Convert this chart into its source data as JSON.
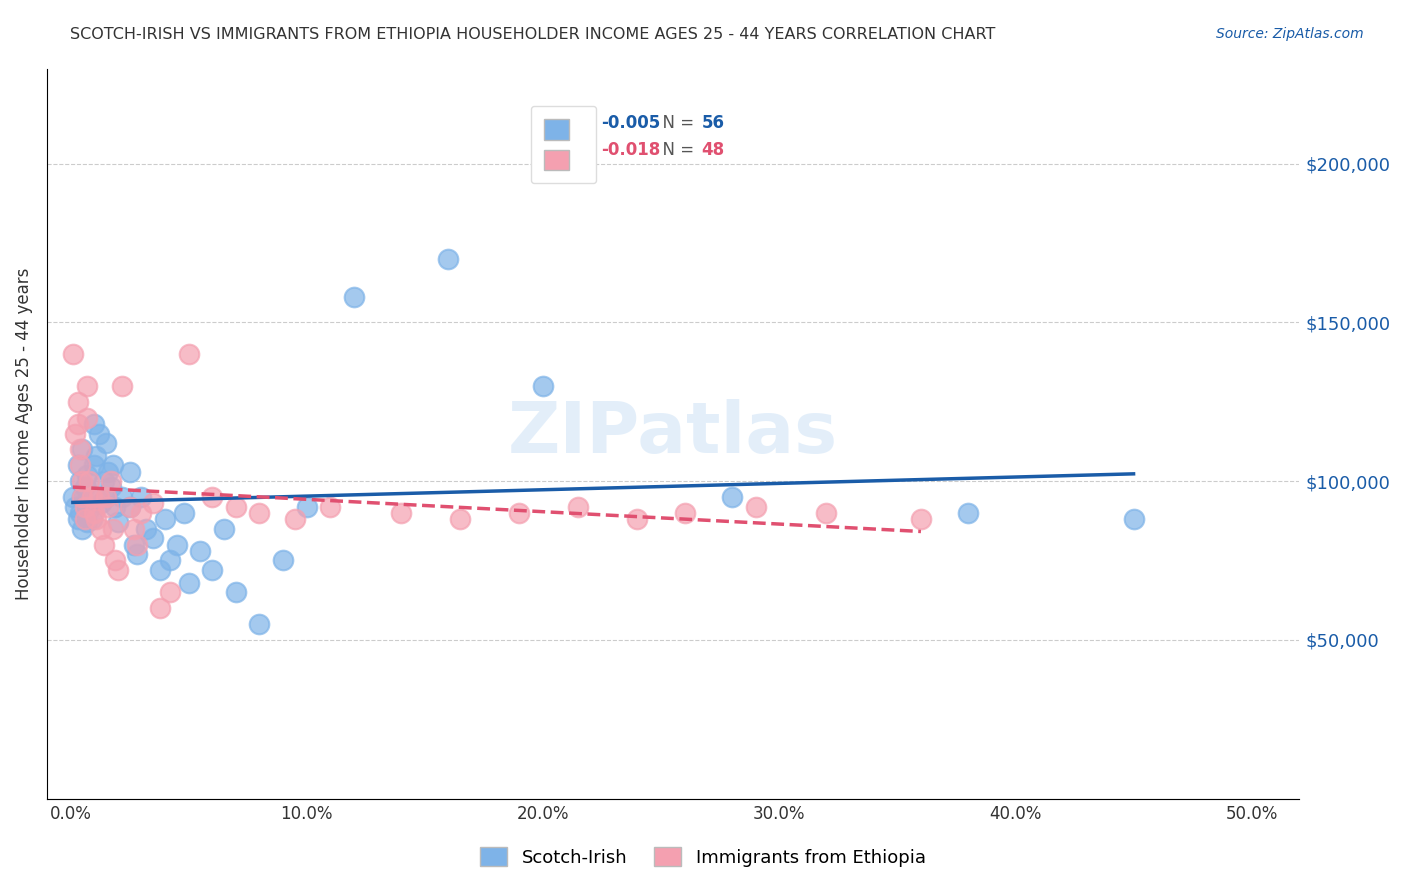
{
  "title": "SCOTCH-IRISH VS IMMIGRANTS FROM ETHIOPIA HOUSEHOLDER INCOME AGES 25 - 44 YEARS CORRELATION CHART",
  "source": "Source: ZipAtlas.com",
  "ylabel": "Householder Income Ages 25 - 44 years",
  "xlabel_ticks": [
    "0.0%",
    "10.0%",
    "20.0%",
    "30.0%",
    "40.0%",
    "50.0%"
  ],
  "xlabel_vals": [
    0.0,
    0.1,
    0.2,
    0.3,
    0.4,
    0.5
  ],
  "ytick_labels": [
    "$50,000",
    "$100,000",
    "$150,000",
    "$200,000"
  ],
  "ytick_vals": [
    50000,
    100000,
    150000,
    200000
  ],
  "ylim": [
    0,
    230000
  ],
  "xlim": [
    -0.01,
    0.52
  ],
  "blue_color": "#7EB3E8",
  "pink_color": "#F4A0B0",
  "blue_line_color": "#1A5CA8",
  "pink_line_color": "#E05070",
  "legend_R_blue": "-0.005",
  "legend_N_blue": "56",
  "legend_R_pink": "-0.018",
  "legend_N_pink": "48",
  "watermark": "ZIPatlas",
  "scotch_irish_x": [
    0.001,
    0.002,
    0.003,
    0.003,
    0.004,
    0.004,
    0.005,
    0.005,
    0.005,
    0.006,
    0.006,
    0.007,
    0.007,
    0.008,
    0.008,
    0.009,
    0.01,
    0.01,
    0.011,
    0.012,
    0.013,
    0.014,
    0.015,
    0.015,
    0.016,
    0.017,
    0.018,
    0.019,
    0.02,
    0.022,
    0.025,
    0.025,
    0.027,
    0.028,
    0.03,
    0.032,
    0.035,
    0.038,
    0.04,
    0.042,
    0.045,
    0.048,
    0.05,
    0.055,
    0.06,
    0.065,
    0.07,
    0.08,
    0.09,
    0.1,
    0.12,
    0.16,
    0.2,
    0.28,
    0.38,
    0.45
  ],
  "scotch_irish_y": [
    95000,
    92000,
    88000,
    105000,
    100000,
    90000,
    95000,
    85000,
    110000,
    93000,
    98000,
    87000,
    102000,
    96000,
    91000,
    88000,
    118000,
    105000,
    108000,
    115000,
    93000,
    100000,
    95000,
    112000,
    103000,
    98000,
    105000,
    92000,
    87000,
    95000,
    92000,
    103000,
    80000,
    77000,
    95000,
    85000,
    82000,
    72000,
    88000,
    75000,
    80000,
    90000,
    68000,
    78000,
    72000,
    85000,
    65000,
    55000,
    75000,
    92000,
    158000,
    170000,
    130000,
    95000,
    90000,
    88000
  ],
  "ethiopia_x": [
    0.001,
    0.002,
    0.003,
    0.003,
    0.004,
    0.004,
    0.005,
    0.005,
    0.006,
    0.006,
    0.007,
    0.007,
    0.008,
    0.009,
    0.01,
    0.011,
    0.012,
    0.013,
    0.014,
    0.015,
    0.016,
    0.017,
    0.018,
    0.019,
    0.02,
    0.022,
    0.025,
    0.027,
    0.028,
    0.03,
    0.035,
    0.038,
    0.042,
    0.05,
    0.06,
    0.07,
    0.08,
    0.095,
    0.11,
    0.14,
    0.165,
    0.19,
    0.215,
    0.24,
    0.26,
    0.29,
    0.32,
    0.36
  ],
  "ethiopia_y": [
    140000,
    115000,
    125000,
    118000,
    110000,
    105000,
    100000,
    95000,
    92000,
    88000,
    130000,
    120000,
    100000,
    95000,
    90000,
    88000,
    95000,
    85000,
    80000,
    95000,
    92000,
    100000,
    85000,
    75000,
    72000,
    130000,
    92000,
    85000,
    80000,
    90000,
    93000,
    60000,
    65000,
    140000,
    95000,
    92000,
    90000,
    88000,
    92000,
    90000,
    88000,
    90000,
    92000,
    88000,
    90000,
    92000,
    90000,
    88000
  ]
}
